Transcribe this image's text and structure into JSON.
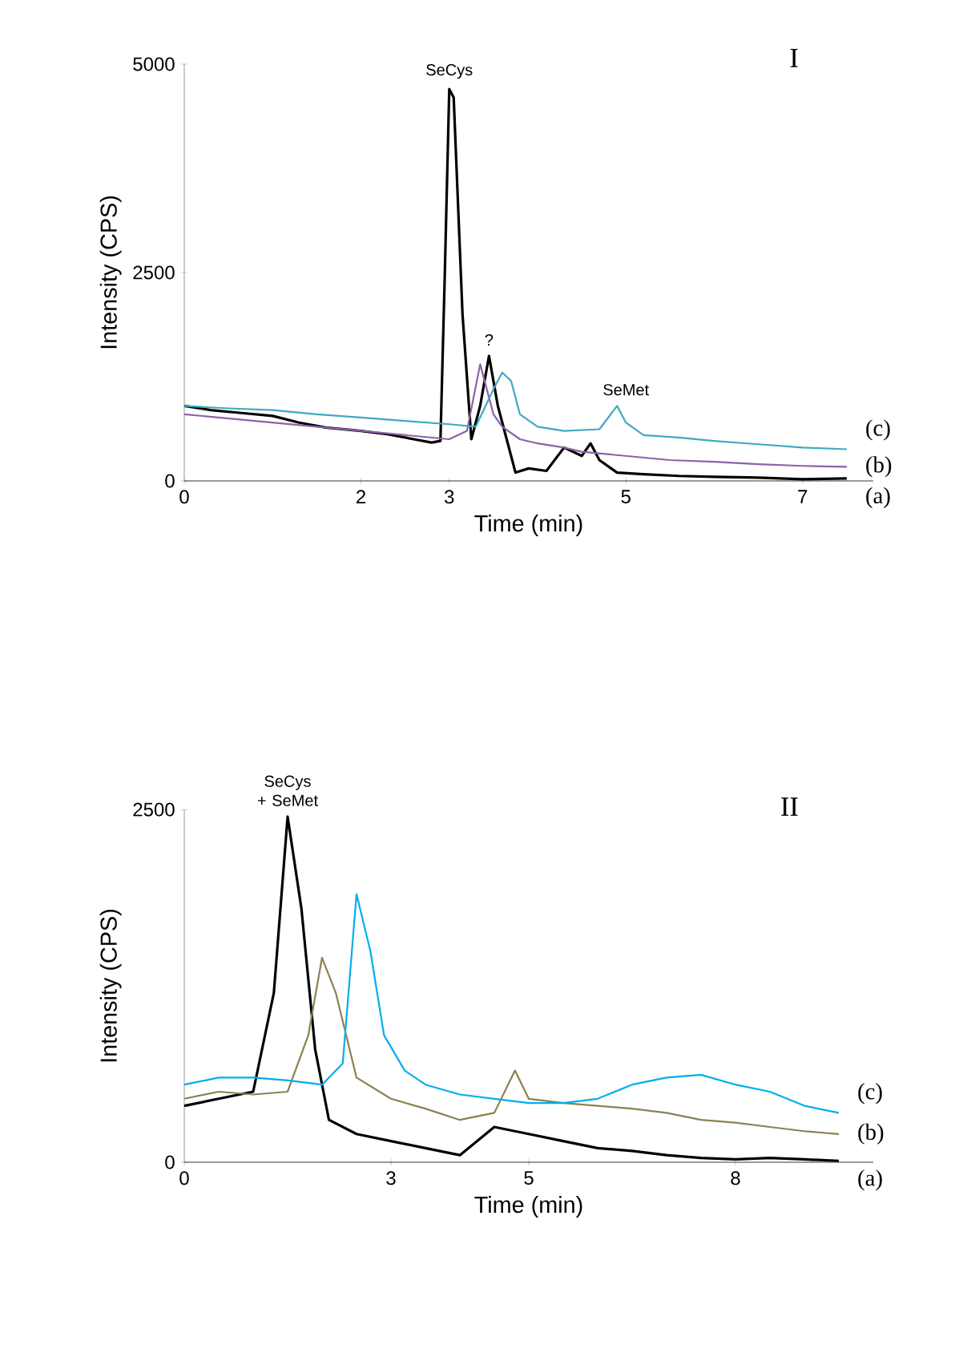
{
  "chart_data": [
    {
      "type": "line",
      "title": "I",
      "xlabel": "Time (min)",
      "ylabel": "Intensity (CPS)",
      "xlim": [
        0,
        7.8
      ],
      "ylim": [
        0,
        5000
      ],
      "xticks": [
        0,
        2,
        3,
        5,
        7
      ],
      "yticks": [
        0,
        2500,
        5000
      ],
      "grid": false,
      "legend": false,
      "marker": "none",
      "line_style": "solid",
      "annotations": [
        {
          "text": "SeCys",
          "x": 3,
          "y": 4700
        },
        {
          "text": "?",
          "x": 3.45,
          "y": 1500
        },
        {
          "text": "SeMet",
          "x": 5,
          "y": 900
        }
      ],
      "series": [
        {
          "name": "(a)",
          "color": "#000000",
          "x": [
            0,
            0.3,
            0.6,
            1,
            1.3,
            1.6,
            2,
            2.3,
            2.6,
            2.8,
            2.9,
            2.95,
            3.0,
            3.05,
            3.15,
            3.25,
            3.35,
            3.45,
            3.55,
            3.65,
            3.75,
            3.9,
            4.1,
            4.3,
            4.5,
            4.6,
            4.7,
            4.9,
            5.2,
            5.6,
            6,
            6.5,
            7,
            7.5
          ],
          "values": [
            900,
            850,
            820,
            780,
            700,
            640,
            600,
            560,
            500,
            460,
            480,
            2500,
            4700,
            4600,
            2000,
            500,
            900,
            1500,
            900,
            500,
            100,
            150,
            120,
            400,
            300,
            450,
            250,
            100,
            80,
            60,
            50,
            40,
            20,
            30
          ]
        },
        {
          "name": "(b)",
          "color": "#8a63a8",
          "x": [
            0,
            0.5,
            1,
            1.5,
            2,
            2.5,
            3,
            3.2,
            3.35,
            3.5,
            3.6,
            3.8,
            4,
            4.3,
            4.5,
            5,
            5.5,
            6,
            6.5,
            7,
            7.5
          ],
          "values": [
            800,
            750,
            700,
            650,
            600,
            550,
            500,
            600,
            1400,
            800,
            650,
            500,
            450,
            400,
            350,
            300,
            250,
            230,
            200,
            180,
            170
          ]
        },
        {
          "name": "(c)",
          "color": "#3fa9c1",
          "x": [
            0,
            0.5,
            1,
            1.5,
            2,
            2.5,
            3,
            3.3,
            3.5,
            3.6,
            3.7,
            3.8,
            4,
            4.3,
            4.7,
            4.9,
            5.0,
            5.2,
            5.6,
            6,
            6.5,
            7,
            7.5
          ],
          "values": [
            900,
            870,
            850,
            800,
            760,
            720,
            680,
            650,
            1100,
            1300,
            1200,
            800,
            650,
            600,
            620,
            900,
            700,
            550,
            520,
            480,
            440,
            400,
            380
          ]
        }
      ]
    },
    {
      "type": "line",
      "title": "II",
      "xlabel": "Time (min)",
      "ylabel": "Intensity (CPS)",
      "xlim": [
        0,
        10
      ],
      "ylim": [
        0,
        2500
      ],
      "xticks": [
        0,
        3,
        5,
        8
      ],
      "yticks": [
        0,
        2500
      ],
      "grid": false,
      "legend": false,
      "marker": "none",
      "line_style": "solid",
      "annotations": [
        {
          "text": "SeCys + SeMet",
          "x": 1.5,
          "y": 2450
        }
      ],
      "series": [
        {
          "name": "(a)",
          "color": "#000000",
          "x": [
            0,
            0.5,
            1,
            1.3,
            1.5,
            1.7,
            1.9,
            2.1,
            2.5,
            3,
            3.5,
            4,
            4.5,
            5,
            5.5,
            6,
            6.5,
            7,
            7.5,
            8,
            8.5,
            9,
            9.5
          ],
          "values": [
            400,
            450,
            500,
            1200,
            2450,
            1800,
            800,
            300,
            200,
            150,
            100,
            50,
            250,
            200,
            150,
            100,
            80,
            50,
            30,
            20,
            30,
            20,
            10
          ]
        },
        {
          "name": "(b)",
          "color": "#8c8150",
          "x": [
            0,
            0.5,
            1,
            1.5,
            1.8,
            2.0,
            2.2,
            2.5,
            3,
            3.5,
            4,
            4.5,
            4.8,
            5,
            5.5,
            6,
            6.5,
            7,
            7.5,
            8,
            8.5,
            9,
            9.5
          ],
          "values": [
            450,
            500,
            480,
            500,
            900,
            1450,
            1200,
            600,
            450,
            380,
            300,
            350,
            650,
            450,
            420,
            400,
            380,
            350,
            300,
            280,
            250,
            220,
            200
          ]
        },
        {
          "name": "(c)",
          "color": "#00aeef",
          "x": [
            0,
            0.5,
            1,
            1.5,
            2,
            2.3,
            2.5,
            2.7,
            2.9,
            3.2,
            3.5,
            4,
            4.5,
            5,
            5.5,
            6,
            6.5,
            7,
            7.5,
            8,
            8.5,
            9,
            9.5
          ],
          "values": [
            550,
            600,
            600,
            580,
            550,
            700,
            1900,
            1500,
            900,
            650,
            550,
            480,
            450,
            420,
            420,
            450,
            550,
            600,
            620,
            550,
            500,
            400,
            350
          ]
        }
      ]
    }
  ]
}
